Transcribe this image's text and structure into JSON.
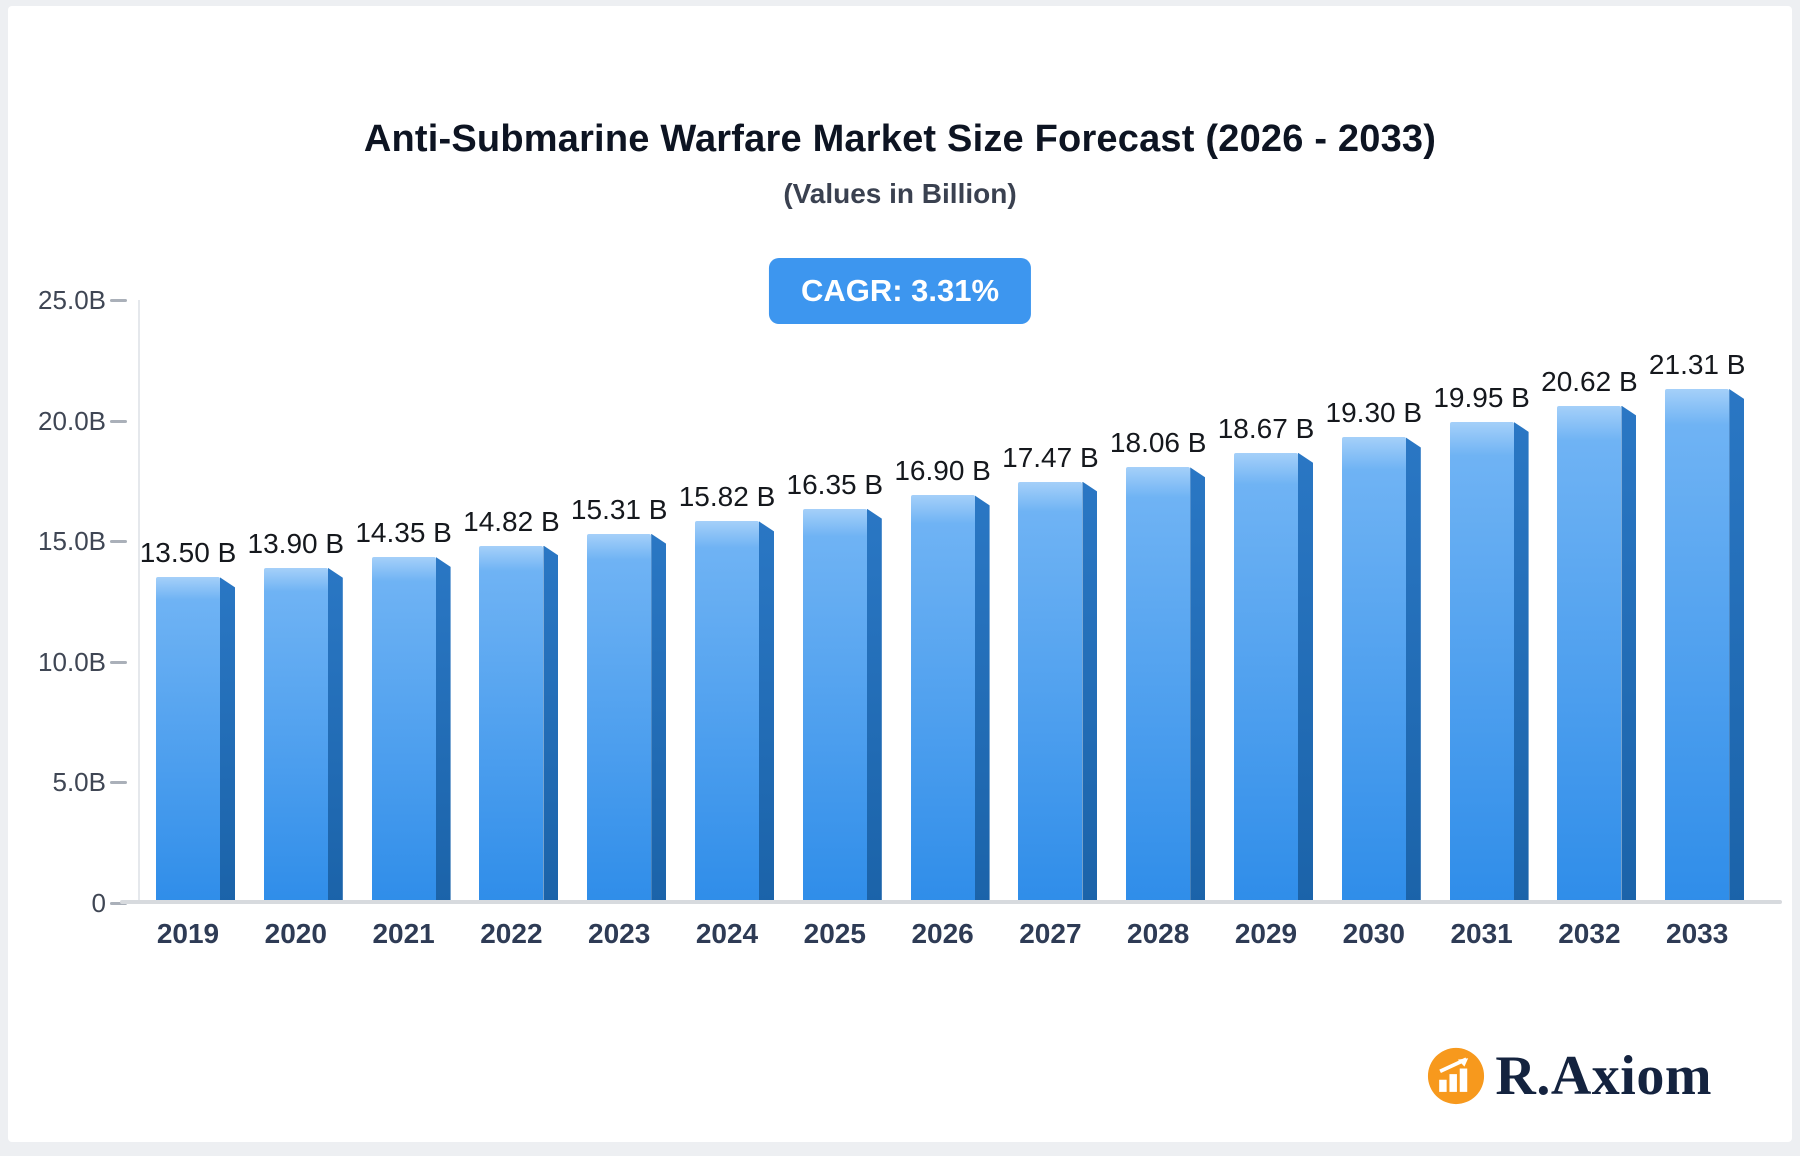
{
  "page": {
    "title": "Anti-Submarine Warfare Market Size Forecast (2026 - 2033)",
    "subtitle": "(Values in Billion)",
    "cagr_badge": "CAGR: 3.31%"
  },
  "chart_data": {
    "type": "bar",
    "title": "Anti-Submarine Warfare Market Size Forecast (2026 - 2033)",
    "subtitle": "(Values in Billion)",
    "categories": [
      "2019",
      "2020",
      "2021",
      "2022",
      "2023",
      "2024",
      "2025",
      "2026",
      "2027",
      "2028",
      "2029",
      "2030",
      "2031",
      "2032",
      "2033"
    ],
    "values": [
      13.5,
      13.9,
      14.35,
      14.82,
      15.31,
      15.82,
      16.35,
      16.9,
      17.47,
      18.06,
      18.67,
      19.3,
      19.95,
      20.62,
      21.31
    ],
    "value_labels": [
      "13.50 B",
      "13.90 B",
      "14.35 B",
      "14.82 B",
      "15.31 B",
      "15.82 B",
      "16.35 B",
      "16.90 B",
      "17.47 B",
      "18.06 B",
      "18.67 B",
      "19.30 B",
      "19.95 B",
      "20.62 B",
      "21.31 B"
    ],
    "xlabel": "",
    "ylabel": "",
    "ylim": [
      0,
      25
    ],
    "yticks": [
      0,
      5,
      10,
      15,
      20,
      25
    ],
    "ytick_labels": [
      "0",
      "5.0B",
      "10.0B",
      "15.0B",
      "20.0B",
      "25.0B"
    ],
    "grid": false,
    "legend": "none",
    "annotations": [
      "CAGR: 3.31%"
    ],
    "colors": {
      "bar_front_top": "#6fb3f4",
      "bar_front_bottom": "#2f8de9",
      "bar_side": "#1b63a9",
      "badge": "#3d96ef"
    }
  },
  "branding": {
    "name": "R.Axiom",
    "icon": "bar-chart-logo-icon",
    "icon_color": "#F7991D",
    "text_color": "#14233F"
  }
}
